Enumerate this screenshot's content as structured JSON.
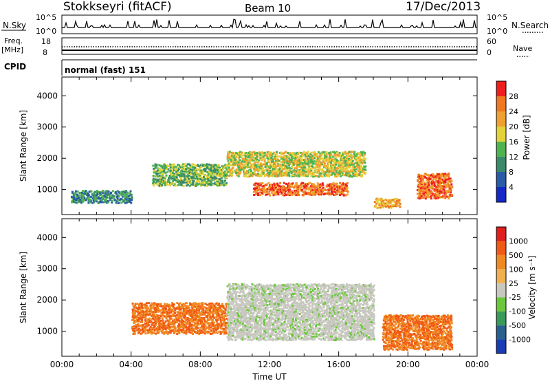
{
  "header": {
    "title": "Stokkseyri (fitACF)",
    "beam": "Beam 10",
    "date": "17/Dec/2013"
  },
  "top_panels": {
    "nsky_label": "N.Sky",
    "nsky_ticks": [
      "10^5",
      "10^0"
    ],
    "nsearch_label": "N.Search",
    "nsearch_ticks": [
      "10^5",
      "10^0"
    ],
    "freq_label": "Freq.",
    "freq_unit": "[MHz]",
    "freq_ticks": [
      "18",
      "8"
    ],
    "nave_label": "Nave",
    "nave_ticks": [
      "60",
      "0"
    ],
    "cpid_label": "CPID",
    "cpid_text": "normal (fast) 151"
  },
  "chart_data": [
    {
      "type": "heatmap",
      "title": "",
      "ylabel": "Slant Range [km]",
      "xlabel": "",
      "ylim": [
        200,
        4600
      ],
      "yticks": [
        "1000",
        "2000",
        "3000",
        "4000"
      ],
      "colorbar": {
        "label": "Power [dB]",
        "ticks": [
          "4",
          "8",
          "12",
          "16",
          "20",
          "24",
          "28"
        ],
        "colors": [
          "#1428c8",
          "#2a5aa8",
          "#3a8a6a",
          "#4fb44f",
          "#e3d23a",
          "#f0a030",
          "#f07820",
          "#ee1e1e"
        ]
      },
      "features": [
        {
          "x": [
            0.5,
            4.0
          ],
          "range": [
            550,
            950
          ],
          "level": "8-12 dB"
        },
        {
          "x": [
            5.2,
            9.5
          ],
          "range": [
            1100,
            1800
          ],
          "level": "12-16 dB"
        },
        {
          "x": [
            9.5,
            17.5
          ],
          "range": [
            1400,
            2200
          ],
          "level": "16-20 dB"
        },
        {
          "x": [
            11.0,
            16.5
          ],
          "range": [
            800,
            1200
          ],
          "level": "24-28 dB"
        },
        {
          "x": [
            18.0,
            19.5
          ],
          "range": [
            400,
            700
          ],
          "level": "20-24 dB"
        },
        {
          "x": [
            20.5,
            22.5
          ],
          "range": [
            700,
            1500
          ],
          "level": "24-28 dB"
        }
      ]
    },
    {
      "type": "heatmap",
      "title": "",
      "ylabel": "Slant Range [km]",
      "xlabel": "Time UT",
      "ylim": [
        200,
        4600
      ],
      "yticks": [
        "1000",
        "2000",
        "3000",
        "4000"
      ],
      "xticks": [
        "00:00",
        "04:00",
        "08:00",
        "12:00",
        "16:00",
        "20:00",
        "00:00"
      ],
      "colorbar": {
        "label": "Velocity [m s⁻¹]",
        "ticks": [
          "1000",
          "500",
          "100",
          "25",
          "-25",
          "-100",
          "-500",
          "-1000"
        ],
        "colors": [
          "#1a3cb4",
          "#2a6090",
          "#3a9a5a",
          "#6cc83a",
          "#c8c8c0",
          "#f0b050",
          "#f08a20",
          "#f05a14",
          "#e01e1e"
        ]
      },
      "features": [
        {
          "x": [
            4.0,
            9.5
          ],
          "range": [
            900,
            1900
          ],
          "level": "-100 to -500 m/s"
        },
        {
          "x": [
            9.5,
            18.0
          ],
          "range": [
            700,
            2500
          ],
          "level": "-25 to 25 m/s"
        },
        {
          "x": [
            18.5,
            22.5
          ],
          "range": [
            400,
            1500
          ],
          "level": "-100 to -500 m/s"
        }
      ]
    }
  ]
}
